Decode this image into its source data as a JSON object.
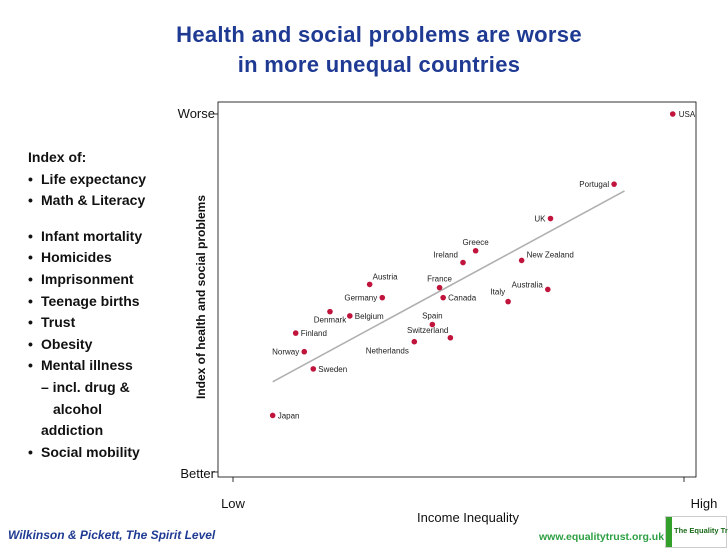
{
  "title_line1": "Health and social problems are worse",
  "title_line2": "in more unequal countries",
  "index": {
    "header": "Index of:",
    "items": [
      "Life expectancy",
      "Math & Literacy",
      "Infant mortality",
      "Homicides",
      "Imprisonment",
      "Teenage births",
      "Trust",
      "Obesity"
    ],
    "mental_line1": "Mental illness",
    "mental_line2": "– incl. drug &",
    "mental_line3": "alcohol",
    "mental_line4": "addiction",
    "last_item": "Social mobility"
  },
  "footer": {
    "citation": "Wilkinson & Pickett, The Spirit Level",
    "url": "www.equalitytrust.org.uk",
    "logo_text": "The Equality Trust"
  },
  "colors": {
    "title": "#1f3a93",
    "point": "#c0143c",
    "trend": "#b0b0b0",
    "footer_url": "#2ea043"
  },
  "chart_data": {
    "type": "scatter",
    "xlabel": "Income Inequality",
    "ylabel": "Index of health and social problems",
    "x_tick_labels": [
      "Low",
      "High"
    ],
    "y_tick_labels": [
      "Worse",
      "Better"
    ],
    "xlim": [
      0,
      100
    ],
    "ylim": [
      0,
      100
    ],
    "points": [
      {
        "label": "USA",
        "x": 97.5,
        "y": 100
      },
      {
        "label": "Portugal",
        "x": 84.5,
        "y": 80.4
      },
      {
        "label": "UK",
        "x": 70.4,
        "y": 70.8
      },
      {
        "label": "New Zealand",
        "x": 64.0,
        "y": 59.1
      },
      {
        "label": "Greece",
        "x": 53.8,
        "y": 61.8
      },
      {
        "label": "Ireland",
        "x": 51.0,
        "y": 58.5
      },
      {
        "label": "Australia",
        "x": 69.8,
        "y": 51.0
      },
      {
        "label": "Italy",
        "x": 61.0,
        "y": 47.6
      },
      {
        "label": "Austria",
        "x": 30.3,
        "y": 52.4
      },
      {
        "label": "France",
        "x": 45.8,
        "y": 51.5
      },
      {
        "label": "Germany",
        "x": 33.1,
        "y": 48.7
      },
      {
        "label": "Canada",
        "x": 46.6,
        "y": 48.7
      },
      {
        "label": "Denmark",
        "x": 21.5,
        "y": 44.8
      },
      {
        "label": "Belgium",
        "x": 25.9,
        "y": 43.6
      },
      {
        "label": "Spain",
        "x": 44.2,
        "y": 41.2
      },
      {
        "label": "Switzerland",
        "x": 48.2,
        "y": 37.5
      },
      {
        "label": "Netherlands",
        "x": 40.2,
        "y": 36.4
      },
      {
        "label": "Finland",
        "x": 13.9,
        "y": 38.8
      },
      {
        "label": "Norway",
        "x": 15.8,
        "y": 33.6
      },
      {
        "label": "Sweden",
        "x": 17.8,
        "y": 28.8
      },
      {
        "label": "Japan",
        "x": 8.8,
        "y": 15.8
      }
    ],
    "trend_line": {
      "x1": 8.8,
      "y1": 25.2,
      "x2": 86.8,
      "y2": 78.5
    }
  }
}
